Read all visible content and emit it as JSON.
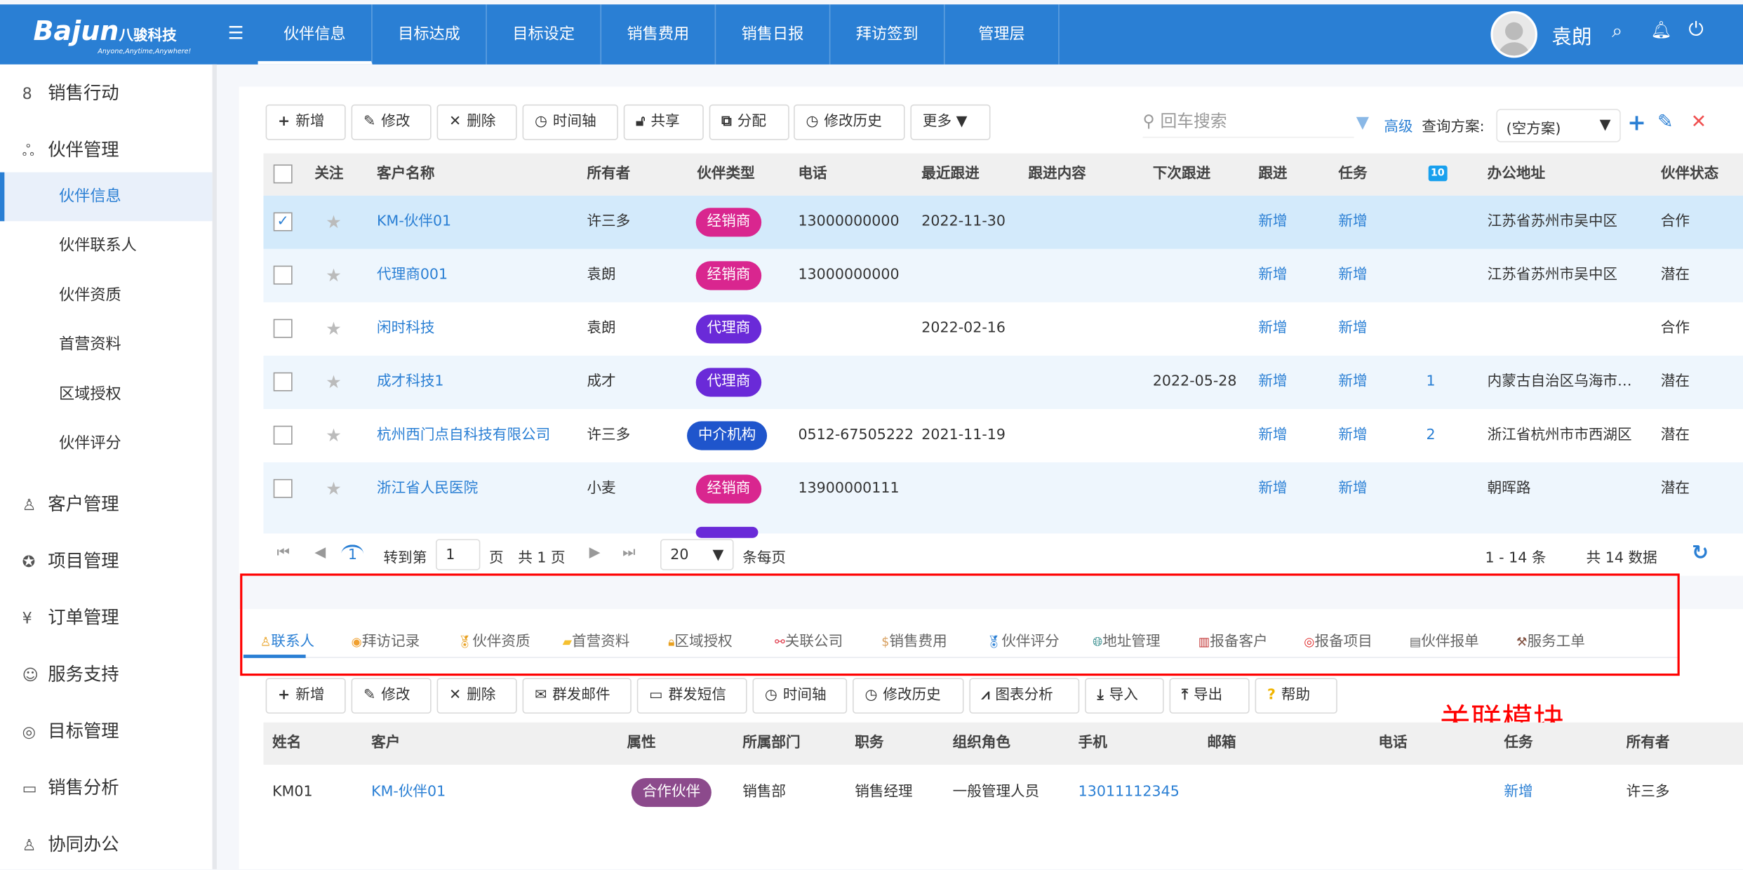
{
  "header": {
    "logo": "Bajun",
    "logo_cn": "八骏科技",
    "logo_slogan": "Anyone,Anytime,Anywhere!",
    "nav": [
      "伙伴信息",
      "目标达成",
      "目标设定",
      "销售费用",
      "销售日报",
      "拜访签到",
      "管理层"
    ],
    "active_nav": "伙伴信息",
    "user": "袁朗"
  },
  "sidebar": {
    "items": [
      {
        "label": "销售行动",
        "icon": "users-icon"
      },
      {
        "label": "伙伴管理",
        "icon": "partners-icon"
      }
    ],
    "sub": [
      "伙伴信息",
      "伙伴联系人",
      "伙伴资质",
      "首营资料",
      "区域授权",
      "伙伴评分"
    ],
    "items2": [
      {
        "label": "客户管理",
        "icon": "person-icon"
      },
      {
        "label": "项目管理",
        "icon": "award-icon"
      },
      {
        "label": "订单管理",
        "icon": "yen-icon"
      },
      {
        "label": "服务支持",
        "icon": "support-icon"
      },
      {
        "label": "目标管理",
        "icon": "target-icon"
      },
      {
        "label": "销售分析",
        "icon": "monitor-icon"
      },
      {
        "label": "协同办公",
        "icon": "person-icon"
      }
    ]
  },
  "toolbar": {
    "buttons": [
      "新增",
      "修改",
      "删除",
      "时间轴",
      "共享",
      "分配",
      "修改历史",
      "更多"
    ],
    "search_placeholder": "回车搜索",
    "advanced": "高级",
    "scheme_label": "查询方案:",
    "scheme_value": "(空方案)"
  },
  "table": {
    "headers": [
      "关注",
      "客户名称",
      "所有者",
      "伙伴类型",
      "电话",
      "最近跟进",
      "跟进内容",
      "下次跟进",
      "跟进",
      "任务",
      "10",
      "办公地址",
      "伙伴状态"
    ],
    "rows": [
      {
        "name": "KM-伙伴01",
        "owner": "许三多",
        "type": "经销商",
        "phone": "13000000000",
        "last": "2022-11-30",
        "next": "",
        "follow": "新增",
        "task": "新增",
        "count": "",
        "addr": "江苏省苏州市吴中区",
        "status": "合作",
        "checked": true
      },
      {
        "name": "代理商001",
        "owner": "袁朗",
        "type": "经销商",
        "phone": "13000000000",
        "last": "",
        "next": "",
        "follow": "新增",
        "task": "新增",
        "count": "",
        "addr": "江苏省苏州市吴中区",
        "status": "潜在"
      },
      {
        "name": "闲时科技",
        "owner": "袁朗",
        "type": "代理商",
        "phone": "",
        "last": "2022-02-16",
        "next": "",
        "follow": "新增",
        "task": "新增",
        "count": "",
        "addr": "",
        "status": "合作"
      },
      {
        "name": "成才科技1",
        "owner": "成才",
        "type": "代理商",
        "phone": "",
        "last": "",
        "next": "2022-05-28",
        "follow": "新增",
        "task": "新增",
        "count": "1",
        "addr": "内蒙古自治区乌海市…",
        "status": "潜在"
      },
      {
        "name": "杭州西门点自科技有限公司",
        "owner": "许三多",
        "type": "中介机构",
        "phone": "0512-67505222",
        "last": "2021-11-19",
        "next": "",
        "follow": "新增",
        "task": "新增",
        "count": "2",
        "addr": "浙江省杭州市市西湖区",
        "status": "潜在"
      },
      {
        "name": "浙江省人民医院",
        "owner": "小麦",
        "type": "经销商",
        "phone": "13900000111",
        "last": "",
        "next": "",
        "follow": "新增",
        "task": "新增",
        "count": "",
        "addr": "朝晖路",
        "status": "潜在"
      }
    ],
    "type_colors": {
      "经销商": "#d9268f",
      "代理商": "#6a2ad8",
      "中介机构": "#1f55cc"
    }
  },
  "pagination": {
    "page": "1",
    "goto_label": "转到第",
    "goto_value": "1",
    "page_unit": "页",
    "total_pages": "共 1 页",
    "page_size": "20",
    "per_page": "条每页",
    "range": "1 - 14 条",
    "total": "共 14 数据"
  },
  "bottom": {
    "tabs": [
      "联系人",
      "拜访记录",
      "伙伴资质",
      "首营资料",
      "区域授权",
      "关联公司",
      "销售费用",
      "伙伴评分",
      "地址管理",
      "报备客户",
      "报备项目",
      "伙伴报单",
      "服务工单"
    ],
    "buttons": [
      "新增",
      "修改",
      "删除",
      "群发邮件",
      "群发短信",
      "时间轴",
      "修改历史",
      "图表分析",
      "导入",
      "导出",
      "帮助"
    ],
    "annotation": "关联模块",
    "headers": [
      "姓名",
      "客户",
      "属性",
      "所属部门",
      "职务",
      "组织角色",
      "手机",
      "邮箱",
      "电话",
      "任务",
      "所有者"
    ],
    "row": {
      "name": "KM01",
      "customer": "KM-伙伴01",
      "attr": "合作伙伴",
      "dept": "销售部",
      "title": "销售经理",
      "role": "一般管理人员",
      "mobile": "13011112345",
      "email": "",
      "phone": "",
      "task": "新增",
      "owner": "许三多"
    }
  }
}
